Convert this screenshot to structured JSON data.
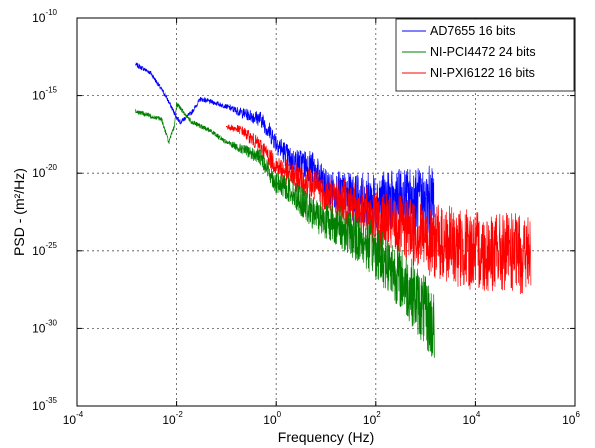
{
  "chart_data": {
    "type": "line",
    "title": "",
    "xlabel": "Frequency (Hz)",
    "ylabel": "PSD - (m²/Hz)",
    "x_scale": "log",
    "y_scale": "log",
    "xlim": [
      0.0001,
      1000000
    ],
    "ylim": [
      1e-35,
      1e-10
    ],
    "x_ticks": [
      {
        "base": "10",
        "exp": "-4"
      },
      {
        "base": "10",
        "exp": "-2"
      },
      {
        "base": "10",
        "exp": "0"
      },
      {
        "base": "10",
        "exp": "2"
      },
      {
        "base": "10",
        "exp": "4"
      },
      {
        "base": "10",
        "exp": "6"
      }
    ],
    "y_ticks": [
      {
        "base": "10",
        "exp": "-10"
      },
      {
        "base": "10",
        "exp": "-15"
      },
      {
        "base": "10",
        "exp": "-20"
      },
      {
        "base": "10",
        "exp": "-25"
      },
      {
        "base": "10",
        "exp": "-30"
      },
      {
        "base": "10",
        "exp": "-35"
      }
    ],
    "grid": true,
    "legend_position": "top-right",
    "series": [
      {
        "name": "AD7655 16 bits",
        "color": "#0000ff",
        "x": [
          0.0015,
          0.003,
          0.006,
          0.01,
          0.012,
          0.02,
          0.03,
          0.05,
          0.1,
          0.2,
          0.5,
          1,
          2,
          5,
          10,
          20,
          50,
          100,
          200,
          500,
          1000,
          1500
        ],
        "y": [
          1e-13,
          3e-14,
          1e-15,
          4e-17,
          2e-17,
          8e-17,
          6e-16,
          4e-16,
          2e-16,
          8e-17,
          3e-17,
          1e-18,
          6e-20,
          3e-20,
          1e-21,
          5e-22,
          2e-22,
          2e-22,
          1.5e-22,
          2e-22,
          1e-22,
          2e-22
        ]
      },
      {
        "name": "NI-PCI4472 24 bits",
        "color": "#007f00",
        "x": [
          0.0015,
          0.005,
          0.007,
          0.009,
          0.01,
          0.02,
          0.05,
          0.1,
          0.5,
          1,
          2,
          5,
          10,
          20,
          50,
          100,
          200,
          500,
          1000,
          1500
        ],
        "y": [
          1e-16,
          3e-17,
          1e-18,
          1e-17,
          3e-16,
          2e-17,
          5e-18,
          1e-18,
          1e-19,
          2e-21,
          8e-22,
          3e-23,
          1e-23,
          3e-24,
          5e-25,
          1e-25,
          1e-26,
          3e-28,
          1e-29,
          1e-30
        ]
      },
      {
        "name": "NI-PXI6122 16 bits",
        "color": "#ff0000",
        "x": [
          0.1,
          0.2,
          0.5,
          1,
          2,
          5,
          10,
          20,
          50,
          100,
          200,
          500,
          1000,
          2000,
          5000,
          10000,
          20000,
          50000,
          100000,
          130000
        ],
        "y": [
          1e-17,
          6e-18,
          5e-19,
          3e-20,
          8e-21,
          2e-21,
          5e-22,
          2e-22,
          5e-23,
          1e-23,
          5e-24,
          2e-24,
          8e-25,
          3e-25,
          1.5e-25,
          1e-25,
          8e-26,
          7e-26,
          6e-26,
          6e-26
        ]
      }
    ]
  }
}
